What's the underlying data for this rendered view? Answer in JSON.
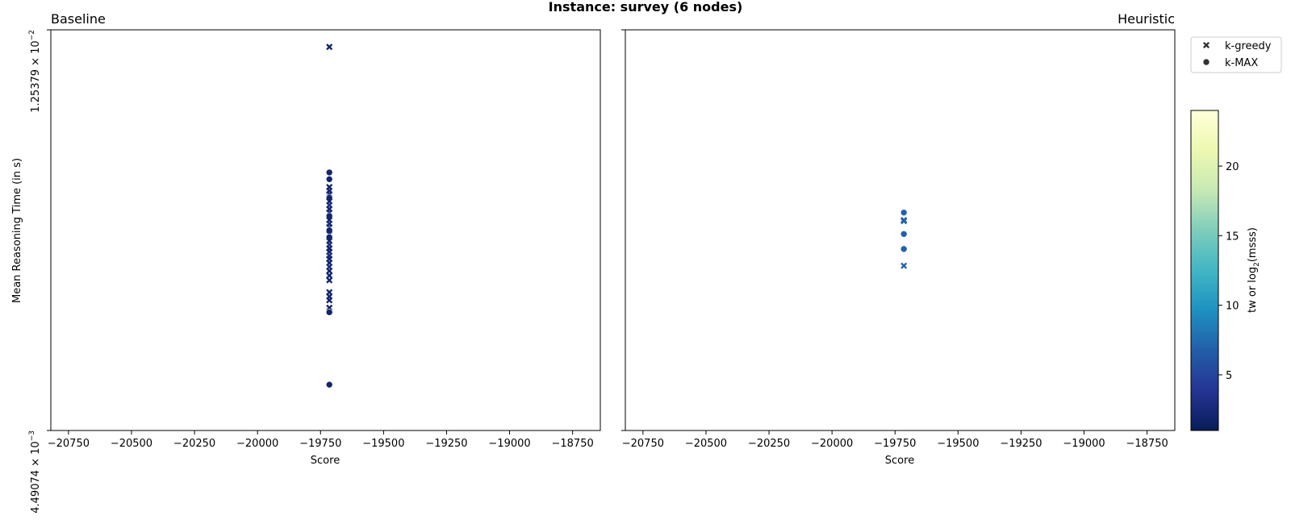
{
  "chart_data": {
    "type": "scatter",
    "title": "Instance: survey (6 nodes)",
    "xlim": [
      -20820,
      -18640
    ],
    "xticks": [
      -20750,
      -20500,
      -20250,
      -20000,
      -19750,
      -19500,
      -19250,
      -19000,
      -18750
    ],
    "xtick_labels": [
      "−20750",
      "−20500",
      "−20250",
      "−20000",
      "−19750",
      "−19500",
      "−19250",
      "−19000",
      "−18750"
    ],
    "ylabel": "Mean Reasoning Time (in s)",
    "y_scale": "log",
    "ylim": [
      0.00449074,
      0.0125379
    ],
    "ytick_labels": [
      {
        "value": 0.0125379,
        "mantissa": "1.25379 × 10",
        "exponent": "−2"
      },
      {
        "value": 0.00449074,
        "mantissa": "4.49074 × 10",
        "exponent": "−3"
      }
    ],
    "panels": [
      {
        "title": "Baseline",
        "title_align": "left",
        "xlabel": "Score",
        "points": [
          {
            "x": -19715,
            "y": 0.012,
            "marker": "x",
            "c": 2
          },
          {
            "x": -19715,
            "y": 0.0087,
            "marker": "o",
            "c": 2
          },
          {
            "x": -19715,
            "y": 0.00855,
            "marker": "o",
            "c": 2
          },
          {
            "x": -19715,
            "y": 0.00838,
            "marker": "x",
            "c": 2
          },
          {
            "x": -19715,
            "y": 0.0083,
            "marker": "x",
            "c": 2
          },
          {
            "x": -19715,
            "y": 0.00823,
            "marker": "x",
            "c": 3
          },
          {
            "x": -19715,
            "y": 0.00815,
            "marker": "o",
            "c": 2
          },
          {
            "x": -19715,
            "y": 0.00808,
            "marker": "x",
            "c": 2
          },
          {
            "x": -19715,
            "y": 0.008,
            "marker": "x",
            "c": 3
          },
          {
            "x": -19715,
            "y": 0.00792,
            "marker": "x",
            "c": 2
          },
          {
            "x": -19715,
            "y": 0.00785,
            "marker": "x",
            "c": 3
          },
          {
            "x": -19715,
            "y": 0.00778,
            "marker": "o",
            "c": 2
          },
          {
            "x": -19715,
            "y": 0.0077,
            "marker": "x",
            "c": 2
          },
          {
            "x": -19715,
            "y": 0.00763,
            "marker": "x",
            "c": 3
          },
          {
            "x": -19715,
            "y": 0.00756,
            "marker": "x",
            "c": 2
          },
          {
            "x": -19715,
            "y": 0.0075,
            "marker": "o",
            "c": 2
          },
          {
            "x": -19715,
            "y": 0.00743,
            "marker": "x",
            "c": 3
          },
          {
            "x": -19715,
            "y": 0.00737,
            "marker": "o",
            "c": 2
          },
          {
            "x": -19715,
            "y": 0.0073,
            "marker": "x",
            "c": 2
          },
          {
            "x": -19715,
            "y": 0.00723,
            "marker": "x",
            "c": 3
          },
          {
            "x": -19715,
            "y": 0.00716,
            "marker": "x",
            "c": 2
          },
          {
            "x": -19715,
            "y": 0.0071,
            "marker": "x",
            "c": 2
          },
          {
            "x": -19715,
            "y": 0.00703,
            "marker": "x",
            "c": 3
          },
          {
            "x": -19715,
            "y": 0.00697,
            "marker": "x",
            "c": 2
          },
          {
            "x": -19715,
            "y": 0.0069,
            "marker": "x",
            "c": 2
          },
          {
            "x": -19715,
            "y": 0.00683,
            "marker": "x",
            "c": 3
          },
          {
            "x": -19715,
            "y": 0.00676,
            "marker": "x",
            "c": 2
          },
          {
            "x": -19715,
            "y": 0.00668,
            "marker": "x",
            "c": 2
          },
          {
            "x": -19715,
            "y": 0.0066,
            "marker": "x",
            "c": 2
          },
          {
            "x": -19715,
            "y": 0.0064,
            "marker": "x",
            "c": 2
          },
          {
            "x": -19715,
            "y": 0.00633,
            "marker": "x",
            "c": 2
          },
          {
            "x": -19715,
            "y": 0.00627,
            "marker": "x",
            "c": 2
          },
          {
            "x": -19715,
            "y": 0.00615,
            "marker": "x",
            "c": 2
          },
          {
            "x": -19715,
            "y": 0.00608,
            "marker": "o",
            "c": 2
          },
          {
            "x": -19715,
            "y": 0.00505,
            "marker": "o",
            "c": 2
          }
        ]
      },
      {
        "title": "Heuristic",
        "title_align": "right",
        "xlabel": "Score",
        "points": [
          {
            "x": -19715,
            "y": 0.00785,
            "marker": "o",
            "c": 7
          },
          {
            "x": -19715,
            "y": 0.0077,
            "marker": "x",
            "c": 7
          },
          {
            "x": -19715,
            "y": 0.00768,
            "marker": "x",
            "c": 7
          },
          {
            "x": -19715,
            "y": 0.00743,
            "marker": "o",
            "c": 7
          },
          {
            "x": -19715,
            "y": 0.00715,
            "marker": "o",
            "c": 7
          },
          {
            "x": -19715,
            "y": 0.00685,
            "marker": "x",
            "c": 7
          }
        ]
      }
    ],
    "legend": {
      "placement": "outside upper right",
      "entries": [
        {
          "label": "k-greedy",
          "marker": "x"
        },
        {
          "label": "k-MAX",
          "marker": "o"
        }
      ]
    },
    "colorbar": {
      "label_prefix": "tw or log",
      "label_subscript": "2",
      "label_suffix": "(msss)",
      "cmap": "YlGnBu",
      "range": [
        1,
        24
      ],
      "ticks": [
        5,
        10,
        15,
        20
      ],
      "stops": [
        "#081d58",
        "#253494",
        "#225ea8",
        "#1d91c0",
        "#41b6c4",
        "#7fcdbb",
        "#c7e9b4",
        "#edf8b1",
        "#ffffd9"
      ]
    }
  }
}
